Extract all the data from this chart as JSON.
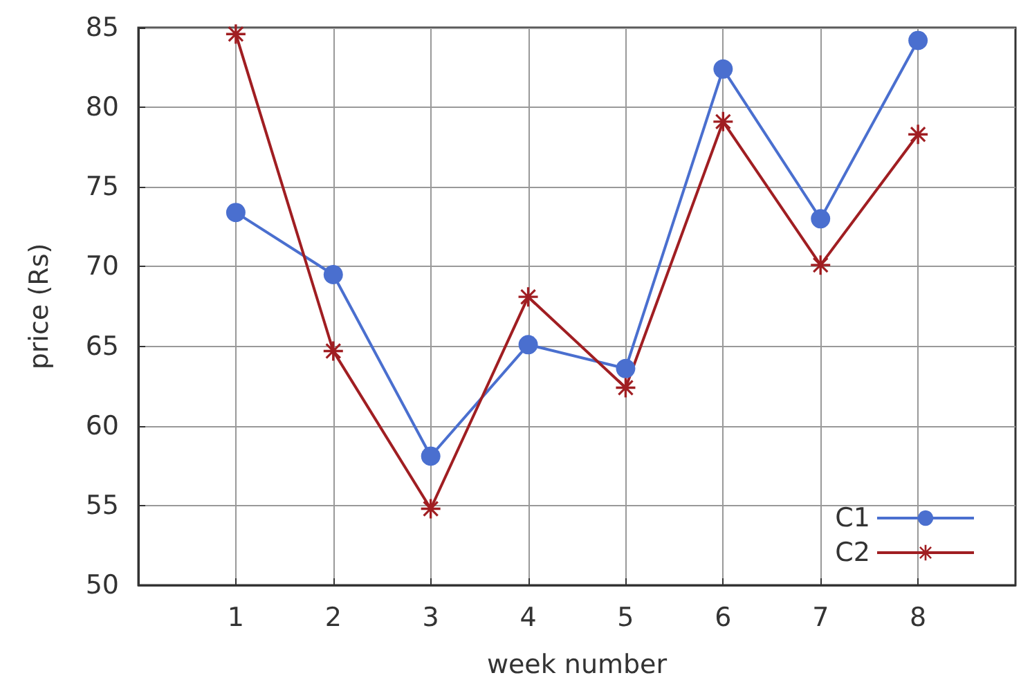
{
  "chart_data": {
    "type": "line",
    "xlabel": "week number",
    "ylabel": "price (Rs)",
    "x": [
      1,
      2,
      3,
      4,
      5,
      6,
      7,
      8
    ],
    "series": [
      {
        "name": "C1",
        "color": "#4a6fcf",
        "marker": "circle",
        "values": [
          73.4,
          69.5,
          58.1,
          65.1,
          63.6,
          82.4,
          73.0,
          84.2
        ]
      },
      {
        "name": "C2",
        "color": "#a01e22",
        "marker": "star",
        "values": [
          84.6,
          64.7,
          54.8,
          68.1,
          62.4,
          79.1,
          70.1,
          78.3
        ]
      }
    ],
    "xlim": [
      0,
      9
    ],
    "xticks": [
      1,
      2,
      3,
      4,
      5,
      6,
      7,
      8
    ],
    "ylim": [
      50,
      85
    ],
    "yticks": [
      50,
      55,
      60,
      65,
      70,
      75,
      80,
      85
    ],
    "grid": true,
    "legend": "bottom right",
    "line_style": "solid"
  }
}
